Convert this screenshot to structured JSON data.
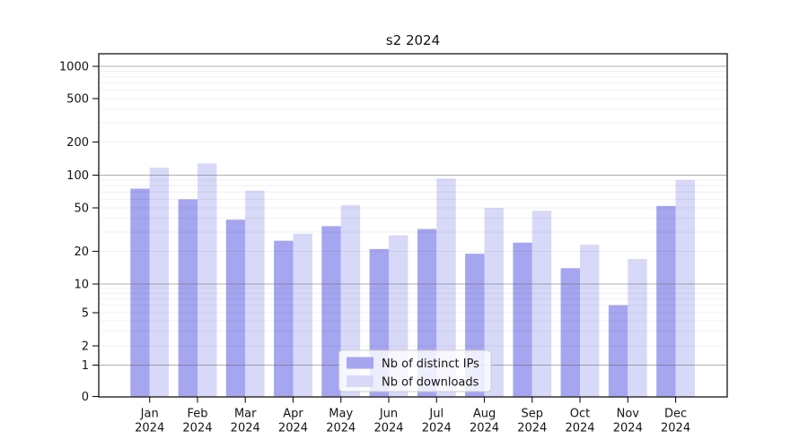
{
  "chart_data": {
    "type": "bar",
    "title": "s2 2024",
    "year_label": "2024",
    "categories": [
      "Jan",
      "Feb",
      "Mar",
      "Apr",
      "May",
      "Jun",
      "Jul",
      "Aug",
      "Sep",
      "Oct",
      "Nov",
      "Dec"
    ],
    "series": [
      {
        "name": "Nb of distinct IPs",
        "color": "#a5a5f0",
        "values": [
          75,
          60,
          39,
          25,
          34,
          21,
          32,
          19,
          24,
          14,
          6,
          52
        ]
      },
      {
        "name": "Nb of downloads",
        "color": "#d8d8f8",
        "values": [
          117,
          128,
          72,
          29,
          53,
          28,
          93,
          50,
          47,
          23,
          17,
          90
        ]
      }
    ],
    "yscale": "symlog",
    "y_ticks": [
      0,
      1,
      2,
      5,
      10,
      20,
      50,
      100,
      200,
      500,
      1000
    ],
    "y_major_gridlines": [
      1,
      10,
      100,
      1000
    ],
    "y_minor_gridlines": [
      2,
      3,
      4,
      5,
      6,
      7,
      8,
      9,
      20,
      30,
      40,
      50,
      60,
      70,
      80,
      90,
      200,
      300,
      400,
      500,
      600,
      700,
      800,
      900
    ],
    "ylim": [
      0,
      1300
    ],
    "grid": true,
    "legend_position": "lower-center"
  }
}
